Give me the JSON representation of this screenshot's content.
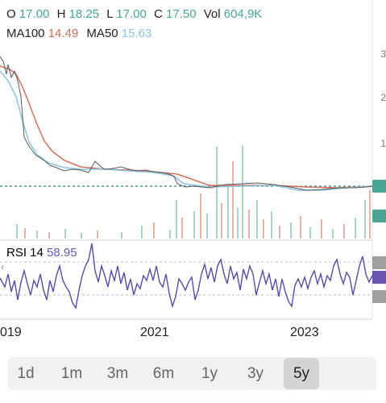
{
  "ohlc": {
    "o_label": "O",
    "o_value": "17.00",
    "h_label": "H",
    "h_value": "18.25",
    "l_label": "L",
    "l_value": "17.00",
    "c_label": "C",
    "c_value": "17.50",
    "vol_label": "Vol",
    "vol_value": "604,9K"
  },
  "ma": {
    "ma100_label": "MA100",
    "ma100_value": "14.49",
    "ma50_label": "MA50",
    "ma50_value": "15.63"
  },
  "rsi": {
    "label": "RSI 14",
    "value": "58.95"
  },
  "x_axis": {
    "years": [
      "019",
      "2021",
      "2023"
    ]
  },
  "ranges": {
    "tabs": [
      "1d",
      "1m",
      "3m",
      "6m",
      "1y",
      "3y",
      "5y"
    ],
    "active": "5y"
  },
  "colors": {
    "price_line": "#5a5a5a",
    "ma100": "#d3705c",
    "ma50": "#8cc3e0",
    "up": "#4aa595",
    "down": "#d3705c",
    "rsi_line": "#5b4aa6",
    "rsi_band": "#6b56b0"
  }
}
